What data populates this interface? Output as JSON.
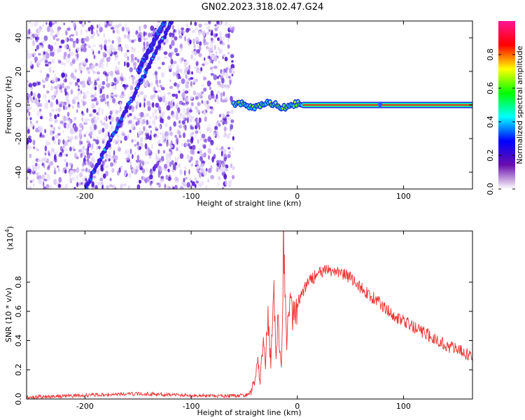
{
  "page_title": "GN02.2023.318.02.47.G24",
  "chart_data": [
    {
      "id": "spectrogram",
      "type": "heatmap",
      "xlabel": "Height of straight line (km)",
      "ylabel": "Frequency (Hz)",
      "xlim": [
        -255,
        165
      ],
      "ylim": [
        -50,
        50
      ],
      "x_ticks": [
        -200,
        -100,
        0,
        100
      ],
      "x_tick_labels": [
        "-200",
        "-100",
        "0",
        "100"
      ],
      "y_ticks": [
        -40,
        -20,
        0,
        20,
        40
      ],
      "y_tick_labels": [
        "-40",
        "-20",
        "0",
        "20",
        "40"
      ],
      "noise_region_x": [
        -255,
        -60
      ],
      "diagonal_tracks": [
        {
          "x_start": -200,
          "y_start": -50,
          "x_end": -118,
          "y_end": 50
        },
        {
          "x_start": -150,
          "y_start": 20,
          "x_end": -125,
          "y_end": 50
        }
      ],
      "signal_band": {
        "x_start": -60,
        "x_end": 165,
        "center_hz": 0
      },
      "colorbar": {
        "label": "Normalized spectral amplitude",
        "range": [
          0,
          1
        ],
        "ticks": [
          0.0,
          0.2,
          0.4,
          0.6,
          0.8
        ],
        "tick_labels": [
          "0.0",
          "0.2",
          "0.4",
          "0.6",
          "0.8"
        ],
        "colors": [
          "#ffffff",
          "#6a0dad",
          "#0000ff",
          "#00ffff",
          "#00ff00",
          "#ffff00",
          "#ff0000",
          "#ff1493"
        ]
      }
    },
    {
      "id": "snr",
      "type": "line",
      "xlabel": "Height of straight line (km)",
      "ylabel": "SNR (10 * v/v)",
      "y_multiplier_label": "(x10",
      "y_multiplier_exp": "4",
      "y_multiplier_close": ")",
      "xlim": [
        -255,
        165
      ],
      "ylim": [
        0,
        1.15
      ],
      "x_ticks": [
        -200,
        -100,
        0,
        100
      ],
      "x_tick_labels": [
        "-200",
        "-100",
        "0",
        "100"
      ],
      "y_ticks": [
        0.0,
        0.2,
        0.4,
        0.6,
        0.8
      ],
      "y_tick_labels": [
        "0.0",
        "0.2",
        "0.4",
        "0.6",
        "0.8"
      ],
      "series": [
        {
          "color": "#ee3333",
          "x": [
            -255,
            -240,
            -220,
            -200,
            -180,
            -160,
            -140,
            -120,
            -100,
            -80,
            -60,
            -45,
            -40,
            -38,
            -35,
            -32,
            -30,
            -28,
            -25,
            -22,
            -20,
            -18,
            -15,
            -13,
            -10,
            -8,
            -5,
            0,
            10,
            20,
            30,
            40,
            50,
            60,
            70,
            80,
            90,
            100,
            110,
            120,
            130,
            140,
            150,
            165
          ],
          "y": [
            0.01,
            0.015,
            0.02,
            0.025,
            0.03,
            0.035,
            0.035,
            0.03,
            0.025,
            0.02,
            0.02,
            0.03,
            0.12,
            0.3,
            0.1,
            0.45,
            0.2,
            0.6,
            0.25,
            0.75,
            0.35,
            0.55,
            0.2,
            1.15,
            0.3,
            0.7,
            0.55,
            0.65,
            0.8,
            0.86,
            0.88,
            0.87,
            0.83,
            0.76,
            0.7,
            0.64,
            0.58,
            0.53,
            0.49,
            0.45,
            0.41,
            0.37,
            0.34,
            0.29
          ]
        }
      ]
    }
  ]
}
